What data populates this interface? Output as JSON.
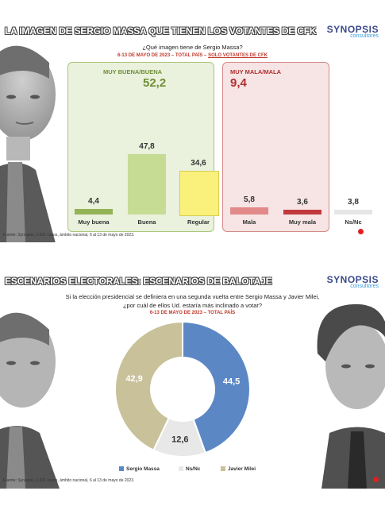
{
  "panel1": {
    "title": "LA IMAGEN DE SERGIO MASSA QUE TIENEN LOS VOTANTES DE CFK",
    "logo": {
      "brand": "SYNOPSIS",
      "sub": "consultores"
    },
    "question": "¿Qué imagen tiene de Sergio Massa?",
    "subtitle_a": "6-13 DE MAYO DE 2023 – TOTAL PAÍS – ",
    "subtitle_b": "SOLO VOTANTES DE CFK",
    "group_pos_label": "MUY BUENA/BUENA",
    "group_pos_value": "52,2",
    "group_neg_label": "MUY MALA/MALA",
    "group_neg_value": "9,4",
    "source": "Fuente: Synopsis, 1.631 casos, ámbito nacional, 6 al 13 de mayo de 2023.",
    "colors": {
      "muy_buena": "#94b356",
      "buena": "#c6dc95",
      "regular": "#f9f17c",
      "mala": "#e2898a",
      "muy_mala": "#c0393c",
      "nsnc": "#e6e6e6"
    }
  },
  "panel2": {
    "title": "ESCENARIOS ELECTORALES: ESCENARIOS DE BALOTAJE",
    "logo": {
      "brand": "SYNOPSIS",
      "sub": "consultores"
    },
    "question_l1": "Si la elección presidencial se definiera en una segunda vuelta entre Sergio Massa y Javier Milei,",
    "question_l2": "¿por cuál de ellos Ud. estaría más inclinado a votar?",
    "subtitle": "6-13 DE MAYO DE 2023 – TOTAL PAÍS",
    "source": "Fuente: Synopsis, 1.631 casos, ámbito nacional, 6 al 13 de mayo de 2023."
  },
  "chart_data": [
    {
      "type": "bar",
      "title": "¿Qué imagen tiene de Sergio Massa?",
      "categories": [
        "Muy buena",
        "Buena",
        "Regular",
        "Mala",
        "Muy mala",
        "Ns/Nc"
      ],
      "values": [
        4.4,
        47.8,
        34.6,
        5.8,
        3.6,
        3.8
      ],
      "value_labels": [
        "4,4",
        "47,8",
        "34,6",
        "5,8",
        "3,6",
        "3,8"
      ],
      "groups": [
        {
          "name": "MUY BUENA/BUENA",
          "value": 52.2
        },
        {
          "name": "MUY MALA/MALA",
          "value": 9.4
        }
      ]
    },
    {
      "type": "pie",
      "title": "Si la elección presidencial se definiera en una segunda vuelta entre Sergio Massa y Javier Milei, ¿por cuál de ellos Ud. estaría más inclinado a votar?",
      "donut": true,
      "slices": [
        {
          "name": "Sergio Massa",
          "value": 44.5,
          "label": "44,5",
          "color": "#5b88c4"
        },
        {
          "name": "Ns/Nc",
          "value": 12.6,
          "label": "12,6",
          "color": "#e8e8e8"
        },
        {
          "name": "Javier Milei",
          "value": 42.9,
          "label": "42,9",
          "color": "#c8c199"
        }
      ],
      "legend": "bottom"
    }
  ]
}
